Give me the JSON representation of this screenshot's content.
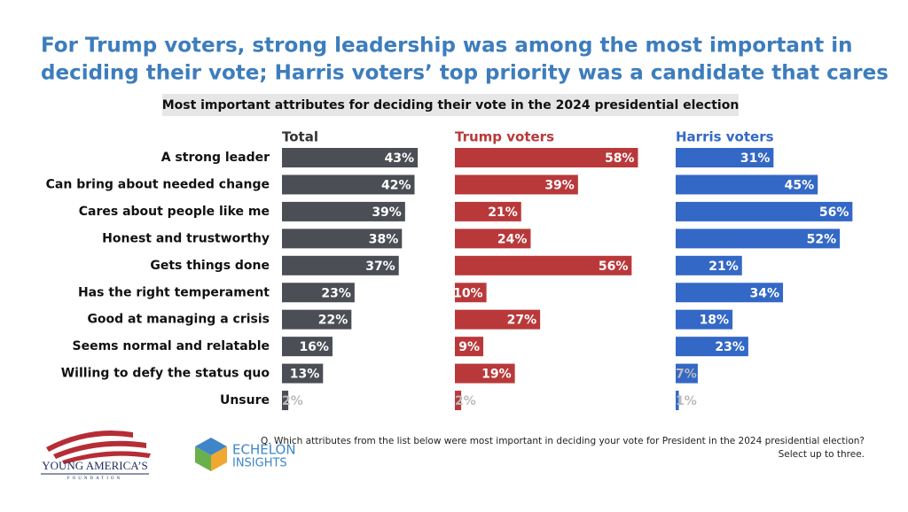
{
  "chart_data": {
    "type": "bar",
    "title": [
      "For Trump voters, strong leadership was among the most important in",
      "deciding their vote; Harris voters’ top priority was a candidate that cares"
    ],
    "subtitle": "Most important attributes for deciding their vote in the 2024 presidential election",
    "categories": [
      "A strong leader",
      "Can bring about needed change",
      "Cares about people like me",
      "Honest and trustworthy",
      "Gets things done",
      "Has the right temperament",
      "Good at managing a crisis",
      "Seems normal and relatable",
      "Willing to defy the status quo",
      "Unsure"
    ],
    "series": [
      {
        "name": "Total",
        "color": "#4b4e55",
        "values": [
          43,
          42,
          39,
          38,
          37,
          23,
          22,
          16,
          13,
          2
        ],
        "value_labels": [
          "43%",
          "42%",
          "39%",
          "38%",
          "37%",
          "23%",
          "22%",
          "16%",
          "13%",
          "2%"
        ]
      },
      {
        "name": "Trump voters",
        "color": "#b9393a",
        "values": [
          58,
          39,
          21,
          24,
          56,
          10,
          27,
          9,
          19,
          2
        ],
        "value_labels": [
          "58%",
          "39%",
          "21%",
          "24%",
          "56%",
          "10%",
          "27%",
          "9%",
          "19%",
          "2%"
        ]
      },
      {
        "name": "Harris voters",
        "color": "#3468c6",
        "values": [
          31,
          45,
          56,
          52,
          21,
          34,
          18,
          23,
          7,
          1
        ],
        "value_labels": [
          "31%",
          "45%",
          "56%",
          "52%",
          "21%",
          "34%",
          "18%",
          "23%",
          "7%",
          "1%"
        ]
      }
    ]
  },
  "footnote": [
    "Q. Which attributes from the list below were most important in deciding your vote for President in the 2024 presidential election?",
    "Select up to three."
  ],
  "logos": {
    "yaf": [
      "YOUNG AMERICA’S",
      "FOUNDATION"
    ],
    "echelon": [
      "ECHELON",
      "INSIGHTS"
    ]
  }
}
